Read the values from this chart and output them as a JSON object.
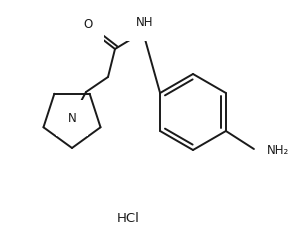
{
  "background_color": "#ffffff",
  "line_color": "#1a1a1a",
  "line_width": 1.4,
  "font_size": 8.5,
  "figsize": [
    3.03,
    2.46
  ],
  "dpi": 100,
  "label_N": "N",
  "label_NH": "NH",
  "label_O": "O",
  "label_NH2": "NH₂",
  "label_HCl": "HCl"
}
